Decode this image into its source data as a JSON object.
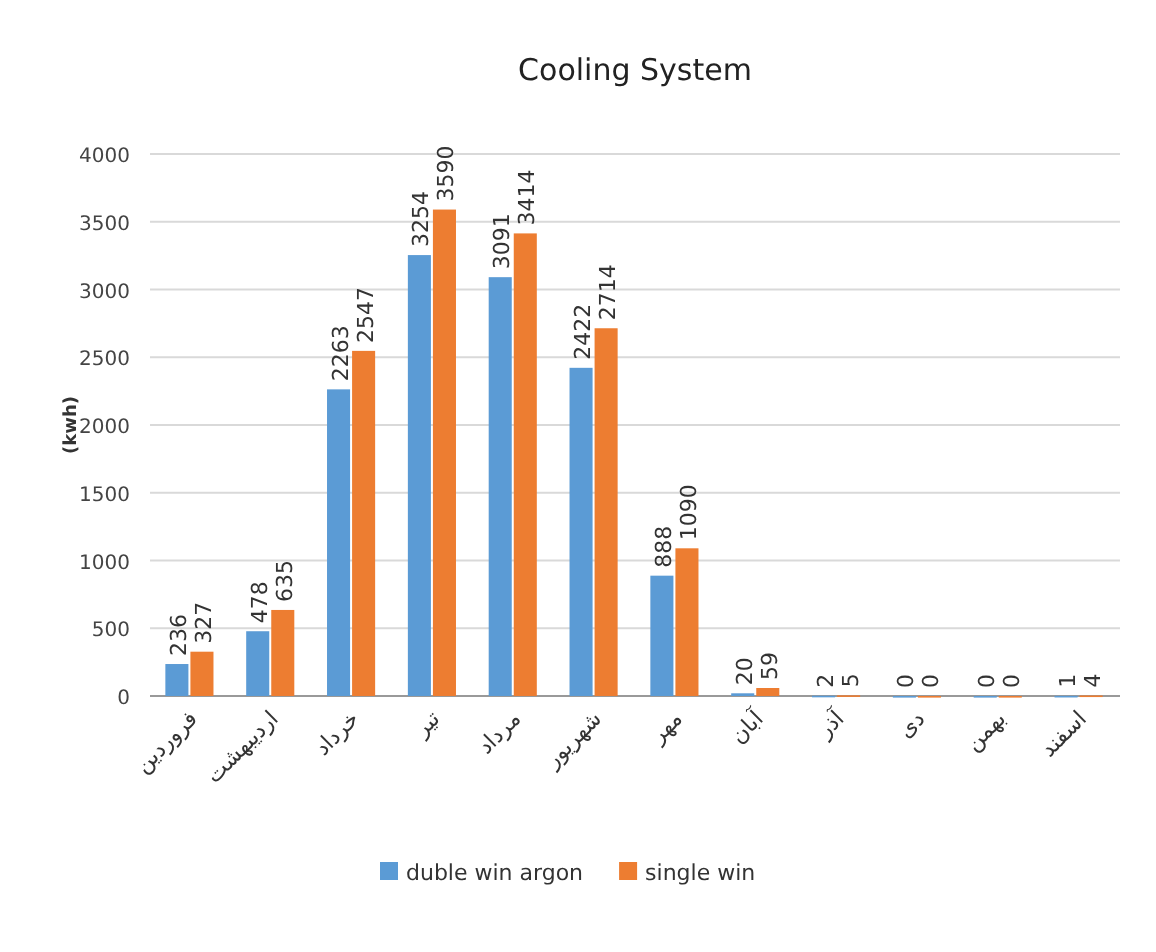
{
  "chart_data": {
    "type": "bar",
    "title": "Cooling System",
    "ylabel": "(kwh)",
    "categories": [
      "فروردین",
      "اردیبهشت",
      "خرداد",
      "تیر",
      "مرداد",
      "شهریور",
      "مهر",
      "آبان",
      "آذر",
      "دی",
      "بهمن",
      "اسفند"
    ],
    "series": [
      {
        "name": "duble win argon",
        "color": "#5b9bd5",
        "values": [
          236,
          478,
          2263,
          3254,
          3091,
          2422,
          888,
          20,
          2,
          0,
          0,
          1
        ]
      },
      {
        "name": "single win",
        "color": "#ed7d31",
        "values": [
          327,
          635,
          2547,
          3590,
          3414,
          2714,
          1090,
          59,
          5,
          0,
          0,
          4
        ]
      }
    ],
    "ylim": [
      0,
      4000
    ],
    "yticks": [
      0,
      500,
      1000,
      1500,
      2000,
      2500,
      3000,
      3500,
      4000
    ],
    "grid": "y",
    "legend": "bottom",
    "data_labels": true
  }
}
